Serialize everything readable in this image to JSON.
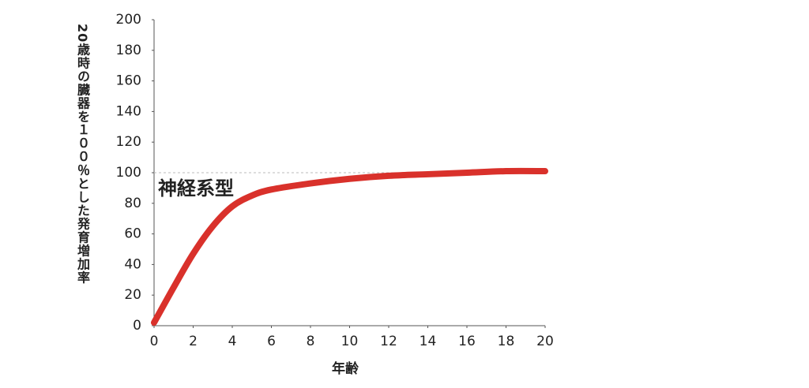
{
  "chart_data": {
    "type": "line",
    "y_label": "20歳時の臓器を１００％とした発育増加率",
    "x_label": "年齢",
    "x": [
      0,
      1,
      2,
      3,
      4,
      5,
      6,
      8,
      10,
      12,
      14,
      16,
      18,
      20
    ],
    "series": [
      {
        "name": "神経系型",
        "color": "#d9312b",
        "values": [
          2,
          25,
          47,
          65,
          78,
          85,
          89,
          93,
          96,
          98,
          99,
          100,
          101,
          101
        ]
      }
    ],
    "reference_line": 100,
    "xlim": [
      0,
      20
    ],
    "xticks": [
      0,
      2,
      4,
      6,
      8,
      10,
      12,
      14,
      16,
      18,
      20
    ],
    "ylim": [
      0,
      200
    ],
    "yticks": [
      0,
      20,
      40,
      60,
      80,
      100,
      120,
      140,
      160,
      180,
      200
    ]
  }
}
